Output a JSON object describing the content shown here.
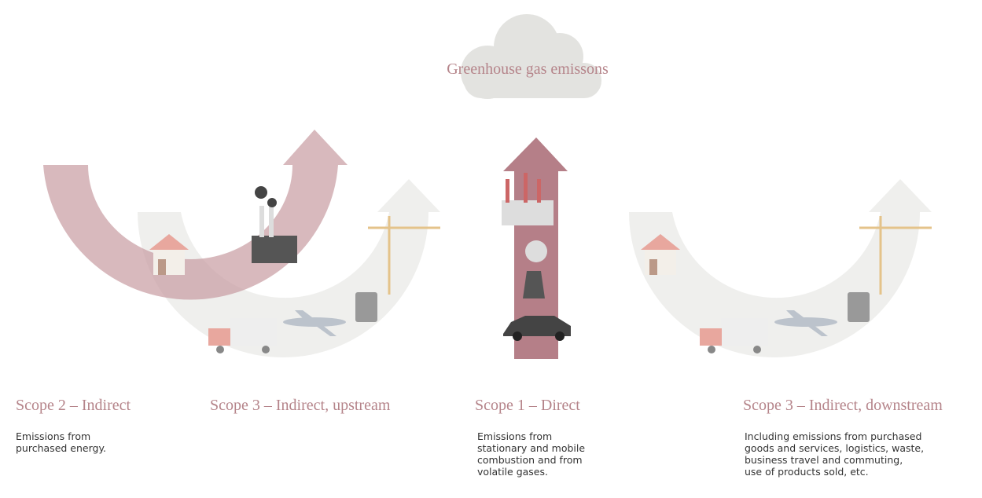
{
  "title": "Greenhouse gas emissons",
  "scopes": [
    {
      "title": "Scope 2 – Indirect",
      "description": [
        "Emissions from",
        "purchased energy."
      ]
    },
    {
      "title": "Scope 3 – Indirect, upstream",
      "description": []
    },
    {
      "title": "Scope 1 – Direct",
      "description": [
        "Emissions from",
        "stationary and mobile",
        "combustion and from",
        "volatile gases."
      ]
    },
    {
      "title": "Scope 3 – Indirect, downstream",
      "description": [
        "Including emissions from purchased",
        "goods and services, logistics, waste,",
        "business travel and commuting,",
        "use of products sold, etc."
      ]
    }
  ]
}
